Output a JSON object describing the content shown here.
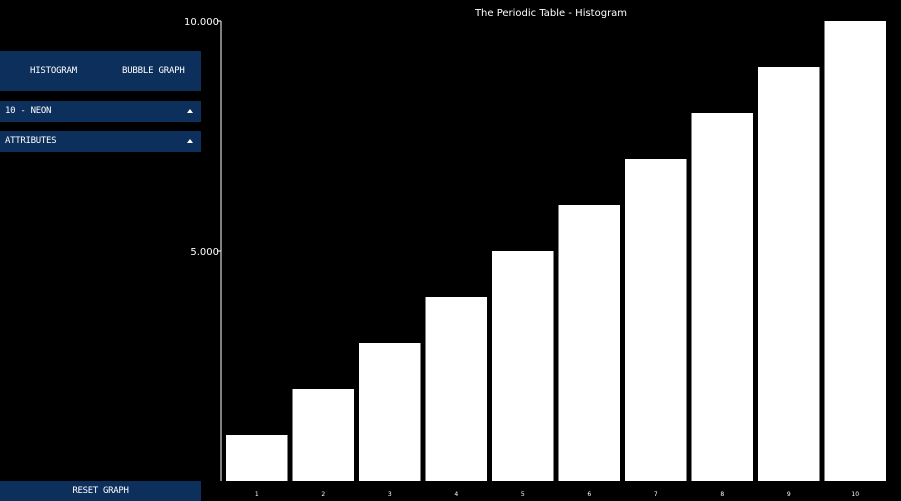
{
  "controls": {
    "tabs": {
      "histogram_label": "HISTOGRAM",
      "bubble_label": "BUBBLE GRAPH"
    },
    "element_dropdown": {
      "selected": "10 - NEON",
      "icon": "caret-up-icon"
    },
    "attributes_dropdown": {
      "selected": "ATTRIBUTES",
      "icon": "caret-up-icon"
    },
    "reset_label": "RESET GRAPH",
    "colors": {
      "panel": "#0d2f5c",
      "background": "#000000",
      "bars": "#ffffff"
    }
  },
  "chart_data": {
    "type": "bar",
    "title": "The Periodic Table - Histogram",
    "categories": [
      "1",
      "2",
      "3",
      "4",
      "5",
      "6",
      "7",
      "8",
      "9",
      "10"
    ],
    "values": [
      1,
      2,
      3,
      4,
      5,
      6,
      7,
      8,
      9,
      10
    ],
    "ylim": [
      0,
      10
    ],
    "yticks": [
      5,
      10
    ],
    "ytick_labels": [
      "5.000",
      "10.000"
    ],
    "xlabel": "",
    "ylabel": "",
    "grid": false
  }
}
